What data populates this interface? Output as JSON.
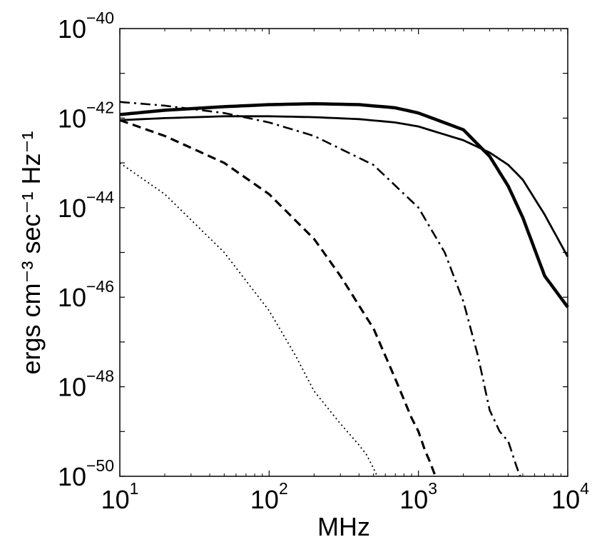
{
  "chart_data": {
    "type": "line",
    "title": "",
    "xlabel": "MHz",
    "ylabel": "ergs cm⁻³ sec⁻¹ Hz⁻¹",
    "xscale": "log",
    "yscale": "log",
    "xlim": [
      10,
      10000
    ],
    "ylim": [
      1e-50,
      1e-40
    ],
    "grid": false,
    "x_ticks": [
      {
        "base": "10",
        "exp": "1"
      },
      {
        "base": "10",
        "exp": "2"
      },
      {
        "base": "10",
        "exp": "3"
      },
      {
        "base": "10",
        "exp": "4"
      }
    ],
    "y_ticks": [
      {
        "base": "10",
        "exp": "−40"
      },
      {
        "base": "10",
        "exp": "−42"
      },
      {
        "base": "10",
        "exp": "−44"
      },
      {
        "base": "10",
        "exp": "−46"
      },
      {
        "base": "10",
        "exp": "−48"
      },
      {
        "base": "10",
        "exp": "−50"
      }
    ],
    "series": [
      {
        "style": "solid-thick",
        "x": [
          10,
          20,
          50,
          100,
          200,
          400,
          700,
          1000,
          2000,
          3000,
          4000,
          5000,
          7000,
          10000
        ],
        "y": [
          1.2e-42,
          1.5e-42,
          1.8e-42,
          2e-42,
          2.1e-42,
          2e-42,
          1.7e-42,
          1.3e-42,
          5.5e-43,
          1.4e-43,
          3e-44,
          6e-45,
          3e-46,
          6e-47
        ]
      },
      {
        "style": "solid-thin",
        "x": [
          10,
          20,
          50,
          100,
          200,
          400,
          700,
          1000,
          2000,
          3000,
          4000,
          5000,
          7000,
          10000
        ],
        "y": [
          9e-43,
          1e-42,
          1.1e-42,
          1.1e-42,
          1.05e-42,
          9.5e-43,
          8e-43,
          6.5e-43,
          3.2e-43,
          1.7e-43,
          9e-44,
          4.2e-44,
          7e-45,
          8e-46
        ]
      },
      {
        "style": "dash-dot",
        "x": [
          10,
          20,
          50,
          100,
          200,
          500,
          1000,
          1500,
          2000,
          2500,
          3000,
          3500,
          4000,
          4500,
          4800
        ],
        "y": [
          2.3e-42,
          1.9e-42,
          1.3e-42,
          8e-43,
          4e-43,
          9e-44,
          1e-44,
          1e-45,
          8e-47,
          5e-48,
          3e-49,
          1e-49,
          6e-50,
          1.8e-50,
          1e-50
        ]
      },
      {
        "style": "dashed",
        "x": [
          10,
          20,
          50,
          100,
          200,
          300,
          500,
          700,
          900,
          1000,
          1100,
          1200,
          1300
        ],
        "y": [
          9e-43,
          4e-43,
          1e-43,
          2e-44,
          2e-45,
          3e-46,
          2e-47,
          1.5e-48,
          2e-49,
          1e-49,
          4e-50,
          2e-50,
          1e-50
        ]
      },
      {
        "style": "dotted",
        "x": [
          10,
          20,
          50,
          100,
          150,
          200,
          300,
          400,
          450,
          500,
          530
        ],
        "y": [
          1e-43,
          2e-44,
          1e-45,
          5e-47,
          5e-48,
          8e-49,
          1.5e-49,
          5e-50,
          3e-50,
          1.5e-50,
          1e-50
        ]
      }
    ]
  }
}
